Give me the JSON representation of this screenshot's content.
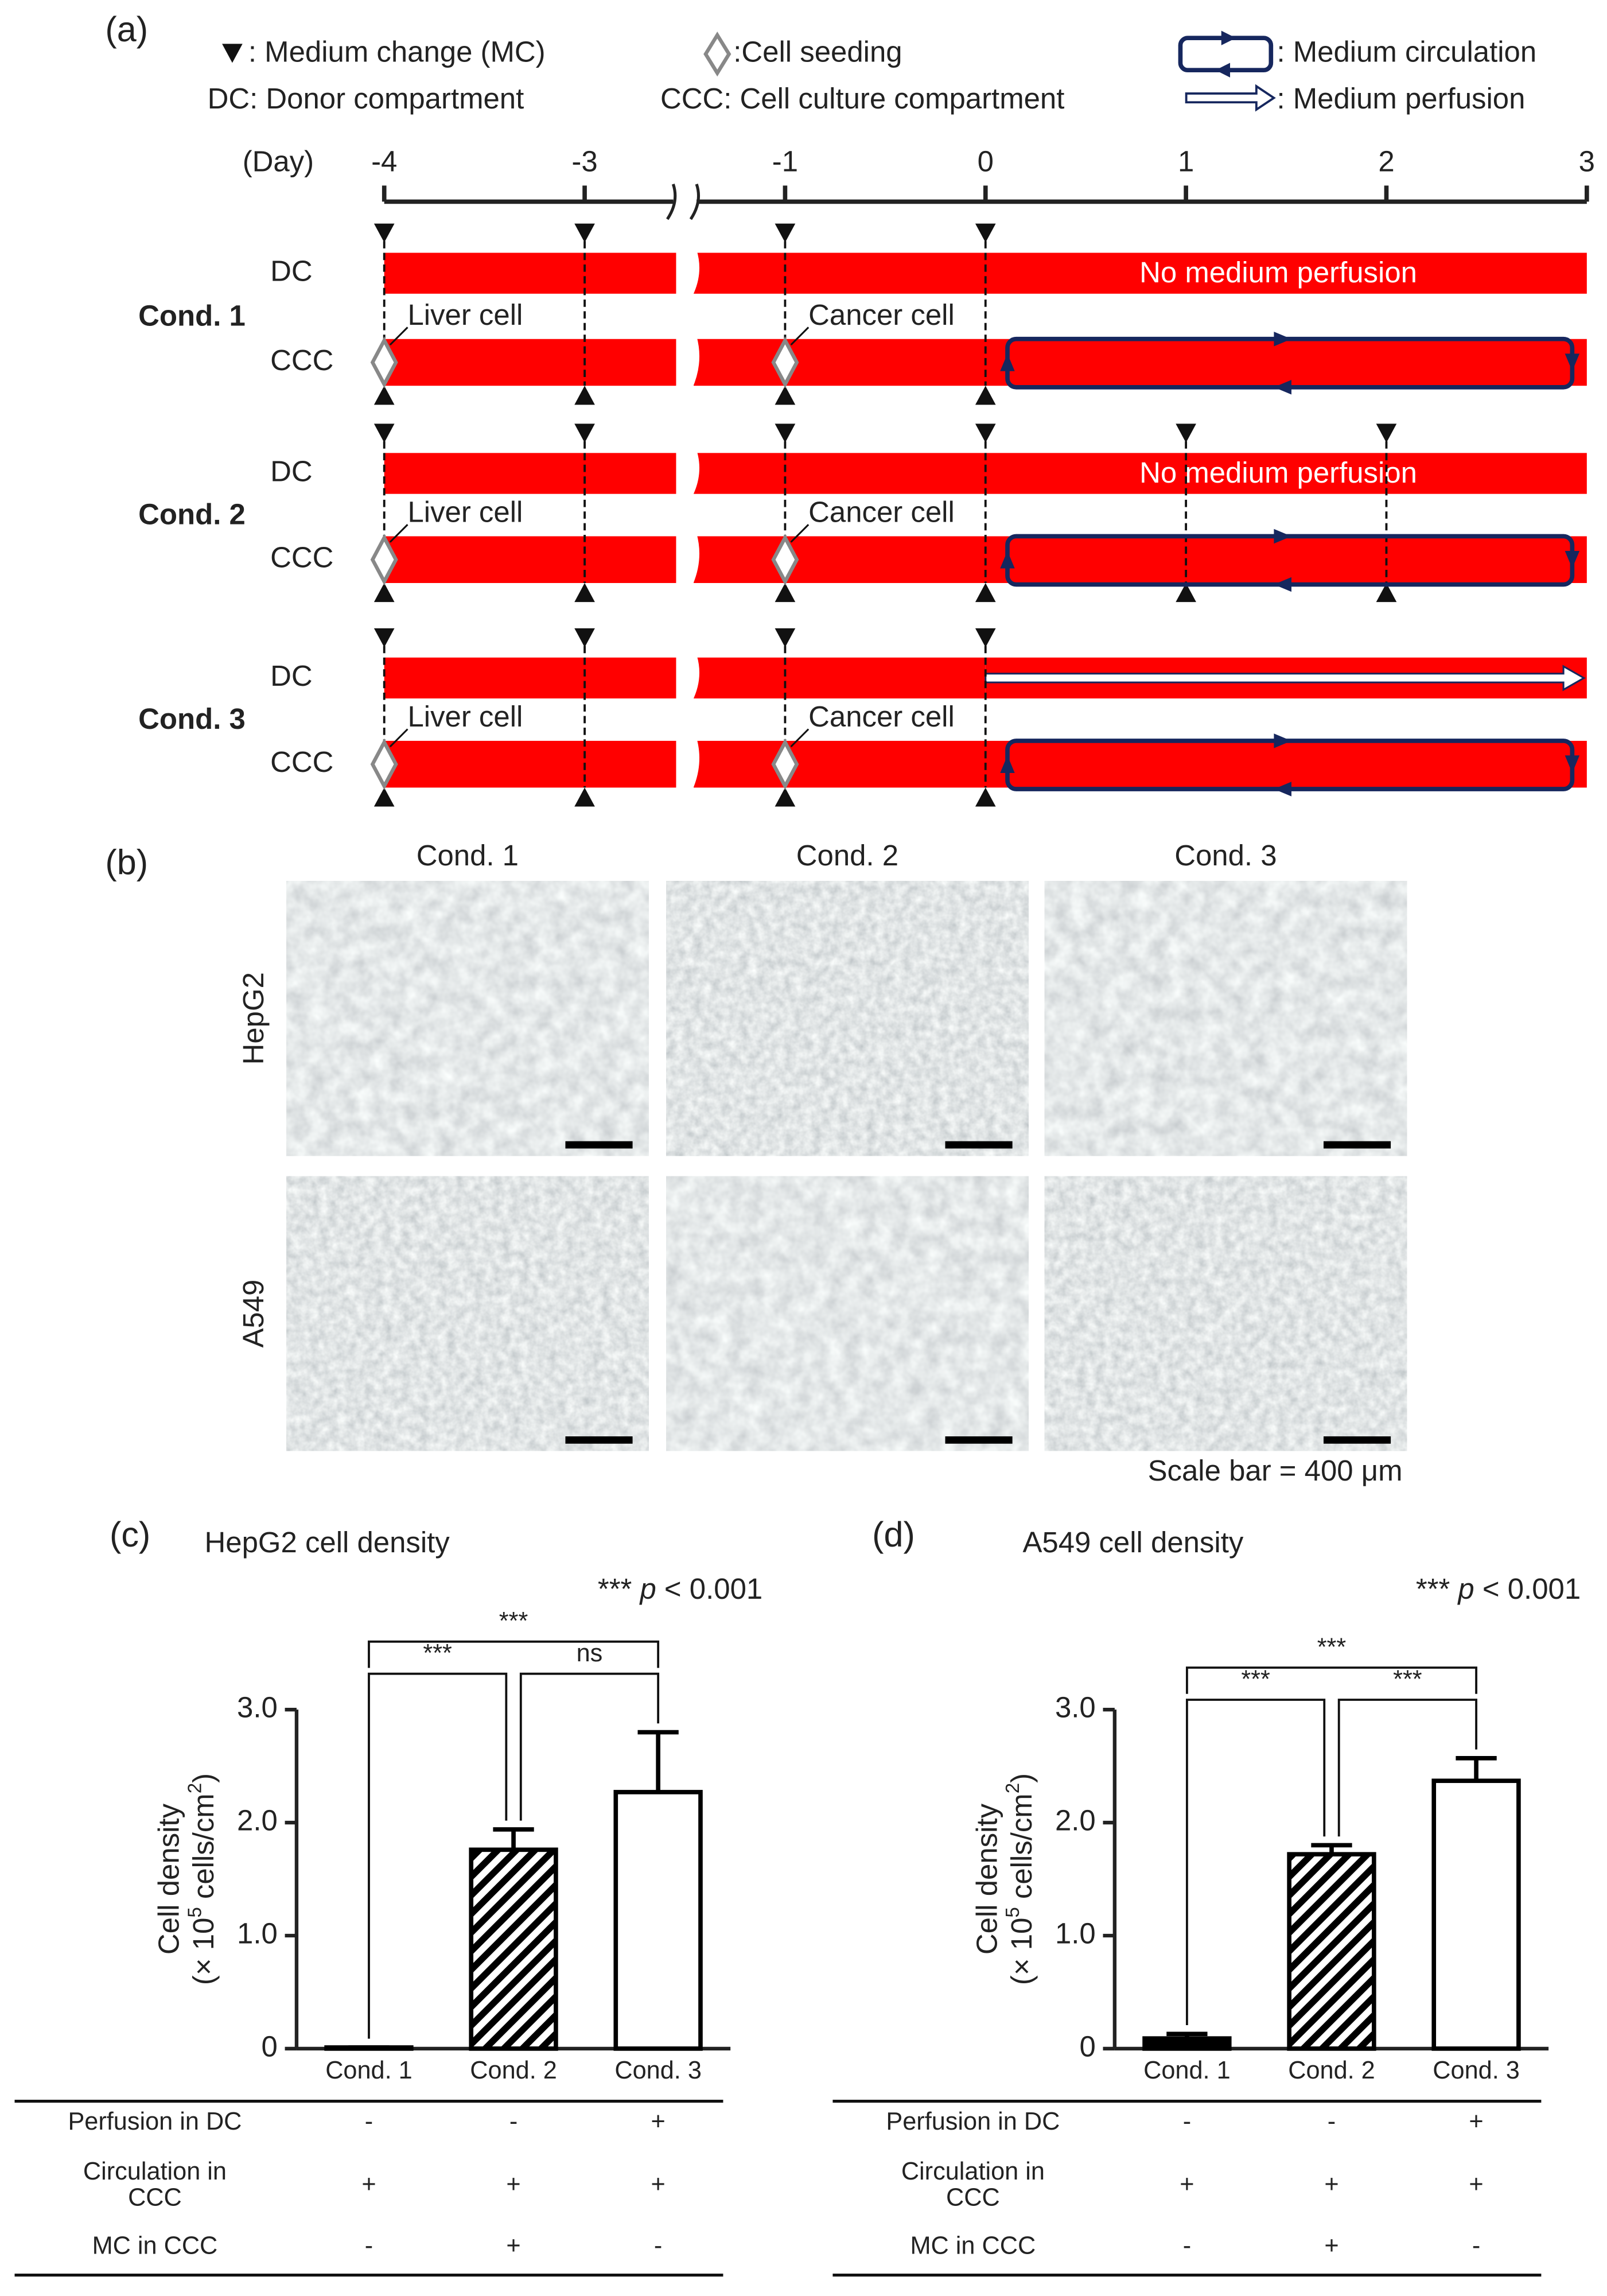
{
  "timeline": {
    "label": "(a)",
    "legend": {
      "mc": ": Medium change (MC)",
      "seeding": ":Cell seeding",
      "circulation": ": Medium circulation",
      "dc": "DC: Donor compartment",
      "ccc": "CCC: Cell culture compartment",
      "perfusion": ": Medium perfusion"
    },
    "day_label": "(Day)",
    "days": [
      -4,
      -3,
      -1,
      0,
      1,
      2,
      3
    ],
    "conditions": [
      {
        "name": "Cond. 1",
        "dc": "DC",
        "ccc": "CCC",
        "dc_note": "No medium perfusion",
        "seed_first": "Liver cell",
        "seed_second": "Cancer cell",
        "medium_change_days": [
          -4,
          -3,
          -1,
          0
        ],
        "perfusion": false
      },
      {
        "name": "Cond. 2",
        "dc": "DC",
        "ccc": "CCC",
        "dc_note": "No medium perfusion",
        "seed_first": "Liver cell",
        "seed_second": "Cancer cell",
        "medium_change_days": [
          -4,
          -3,
          -1,
          0,
          1,
          2
        ],
        "perfusion": false
      },
      {
        "name": "Cond. 3",
        "dc": "DC",
        "ccc": "CCC",
        "seed_first": "Liver cell",
        "seed_second": "Cancer cell",
        "medium_change_days": [
          -4,
          -3,
          -1,
          0
        ],
        "perfusion": true
      }
    ]
  },
  "micrographs": {
    "label": "(b)",
    "columns": [
      "Cond. 1",
      "Cond. 2",
      "Cond. 3"
    ],
    "rows": [
      "HepG2",
      "A549"
    ],
    "scale_note": "Scale bar = 400 μm"
  },
  "chart_data": [
    {
      "type": "bar",
      "panel": "(c)",
      "title": "HepG2 cell density",
      "note": [
        "***",
        "p",
        "< 0.001"
      ],
      "categories": [
        "Cond. 1",
        "Cond. 2",
        "Cond. 3"
      ],
      "values": [
        0.01,
        1.76,
        2.27
      ],
      "errors": [
        0,
        0.18,
        0.53
      ],
      "colors": [
        "#000000",
        "#ffffff",
        "#ffffff"
      ],
      "hatched": [
        false,
        true,
        false
      ],
      "ylim": [
        0,
        3
      ],
      "yticks": [
        0,
        {
          "value": 1,
          "label": "1.0"
        },
        {
          "value": 2,
          "label": "2.0"
        },
        {
          "value": 3,
          "label": "3.0"
        }
      ],
      "ylabel": "Cell density",
      "ylabel_unit": [
        "(× 10",
        "5",
        " cells/cm",
        "2",
        ")"
      ],
      "brackets": [
        "***",
        "***",
        "ns"
      ],
      "table": [
        {
          "label": [
            "Perfusion in DC"
          ],
          "cells": [
            "-",
            "-",
            "+"
          ]
        },
        {
          "label": [
            "Circulation in",
            "CCC"
          ],
          "cells": [
            "+",
            "+",
            "+"
          ]
        },
        {
          "label": [
            "MC in CCC"
          ],
          "cells": [
            "-",
            "+",
            "-"
          ]
        }
      ]
    },
    {
      "type": "bar",
      "panel": "(d)",
      "title": "A549 cell density",
      "note": [
        "***",
        "p",
        "< 0.001"
      ],
      "categories": [
        "Cond. 1",
        "Cond. 2",
        "Cond. 3"
      ],
      "values": [
        0.09,
        1.72,
        2.37
      ],
      "errors": [
        0.04,
        0.08,
        0.2
      ],
      "colors": [
        "#000000",
        "#ffffff",
        "#ffffff"
      ],
      "hatched": [
        false,
        true,
        false
      ],
      "ylim": [
        0,
        3
      ],
      "yticks": [
        0,
        {
          "value": 1,
          "label": "1.0"
        },
        {
          "value": 2,
          "label": "2.0"
        },
        {
          "value": 3,
          "label": "3.0"
        }
      ],
      "ylabel": "Cell density",
      "ylabel_unit": [
        "(× 10",
        "5",
        " cells/cm",
        "2",
        ")"
      ],
      "brackets": [
        "***",
        "***",
        "***"
      ],
      "table": [
        {
          "label": [
            "Perfusion in DC"
          ],
          "cells": [
            "-",
            "-",
            "+"
          ]
        },
        {
          "label": [
            "Circulation in",
            "CCC"
          ],
          "cells": [
            "+",
            "+",
            "+"
          ]
        },
        {
          "label": [
            "MC in CCC"
          ],
          "cells": [
            "-",
            "+",
            "-"
          ]
        }
      ]
    }
  ]
}
